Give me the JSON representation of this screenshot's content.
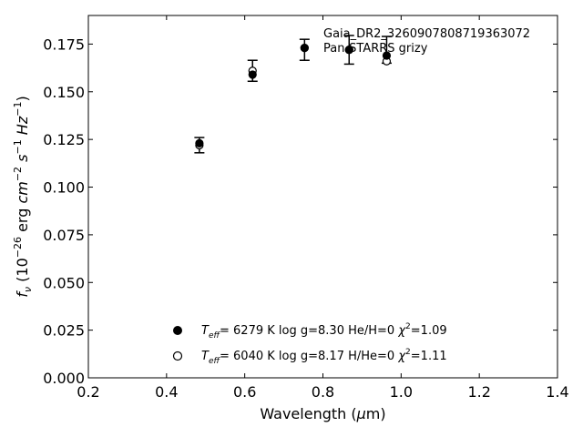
{
  "chart_data": {
    "type": "scatter",
    "title": "",
    "xlabel": "Wavelength (μm)",
    "ylabel": "f_ν (10^-26 erg cm^-2 s^-1 Hz^-1)",
    "xlim": [
      0.2,
      1.4
    ],
    "ylim": [
      0.0,
      0.19
    ],
    "x_ticks": [
      "0.2",
      "0.4",
      "0.6",
      "0.8",
      "1.0",
      "1.2",
      "1.4"
    ],
    "y_ticks": [
      "0.000",
      "0.025",
      "0.050",
      "0.075",
      "0.100",
      "0.125",
      "0.150",
      "0.175"
    ],
    "annotations": [
      "Gaia_DR2_3260907808719363072",
      "Pan-STARRS grizy"
    ],
    "grid": false,
    "observed": {
      "x": [
        0.484,
        0.62,
        0.753,
        0.867,
        0.963
      ],
      "y": [
        0.122,
        0.161,
        0.172,
        0.172,
        0.172
      ],
      "yerr": [
        0.004,
        0.0055,
        0.0055,
        0.0075,
        0.007
      ]
    },
    "series": [
      {
        "name": "T_eff= 6279 K log g=8.30 He/H=0 χ²=1.09",
        "marker": "filled",
        "x": [
          0.484,
          0.62,
          0.753,
          0.867,
          0.963
        ],
        "y": [
          0.123,
          0.159,
          0.173,
          0.172,
          0.169
        ]
      },
      {
        "name": "T_eff= 6040 K log g=8.17 H/He=0 χ²=1.11",
        "marker": "open",
        "x": [
          0.484,
          0.62,
          0.753,
          0.867,
          0.963
        ],
        "y": [
          0.122,
          0.161,
          0.173,
          0.172,
          0.166
        ]
      }
    ],
    "legend_position": "bottom-center",
    "legend": [
      {
        "teff": "6279 K",
        "logg": "log g=8.30",
        "comp": "He/H=0",
        "chi": "=1.09"
      },
      {
        "teff": "6040 K",
        "logg": "log g=8.17",
        "comp": "H/He=0",
        "chi": "=1.11"
      }
    ]
  }
}
